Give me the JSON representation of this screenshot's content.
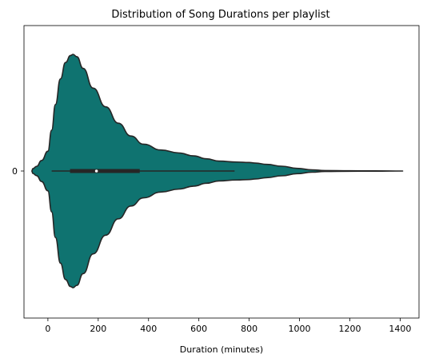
{
  "chart_data": {
    "type": "violin",
    "title": "Distribution of Song Durations per playlist",
    "xlabel": "Duration (minutes)",
    "ylabel": "",
    "xlim": [
      -95,
      1475
    ],
    "x_ticks": [
      0,
      200,
      400,
      600,
      800,
      1000,
      1200,
      1400
    ],
    "y_tick_labels": [
      "0"
    ],
    "grid": false,
    "legend": "none",
    "colors": {
      "fill": "#0f7370",
      "edge": "#262626",
      "box": "#262626",
      "median": "#ffffff"
    },
    "density_profile": [
      {
        "x": -64,
        "d": 0.0
      },
      {
        "x": -60,
        "d": 0.02
      },
      {
        "x": -45,
        "d": 0.04
      },
      {
        "x": -25,
        "d": 0.09
      },
      {
        "x": 0,
        "d": 0.17
      },
      {
        "x": 15,
        "d": 0.35
      },
      {
        "x": 30,
        "d": 0.57
      },
      {
        "x": 50,
        "d": 0.79
      },
      {
        "x": 70,
        "d": 0.93
      },
      {
        "x": 90,
        "d": 0.99
      },
      {
        "x": 100,
        "d": 1.0
      },
      {
        "x": 115,
        "d": 0.98
      },
      {
        "x": 140,
        "d": 0.88
      },
      {
        "x": 180,
        "d": 0.71
      },
      {
        "x": 230,
        "d": 0.55
      },
      {
        "x": 280,
        "d": 0.41
      },
      {
        "x": 330,
        "d": 0.3
      },
      {
        "x": 380,
        "d": 0.23
      },
      {
        "x": 450,
        "d": 0.18
      },
      {
        "x": 520,
        "d": 0.155
      },
      {
        "x": 580,
        "d": 0.13
      },
      {
        "x": 630,
        "d": 0.105
      },
      {
        "x": 680,
        "d": 0.085
      },
      {
        "x": 750,
        "d": 0.077
      },
      {
        "x": 800,
        "d": 0.073
      },
      {
        "x": 825,
        "d": 0.068
      },
      {
        "x": 870,
        "d": 0.057
      },
      {
        "x": 930,
        "d": 0.041
      },
      {
        "x": 990,
        "d": 0.023
      },
      {
        "x": 1050,
        "d": 0.01
      },
      {
        "x": 1100,
        "d": 0.004
      },
      {
        "x": 1200,
        "d": 0.002
      },
      {
        "x": 1300,
        "d": 0.0015
      },
      {
        "x": 1410,
        "d": 0.0
      }
    ],
    "box": {
      "whisker_low": 15,
      "q1": 88,
      "median": 193,
      "q3": 365,
      "whisker_high": 742
    }
  }
}
